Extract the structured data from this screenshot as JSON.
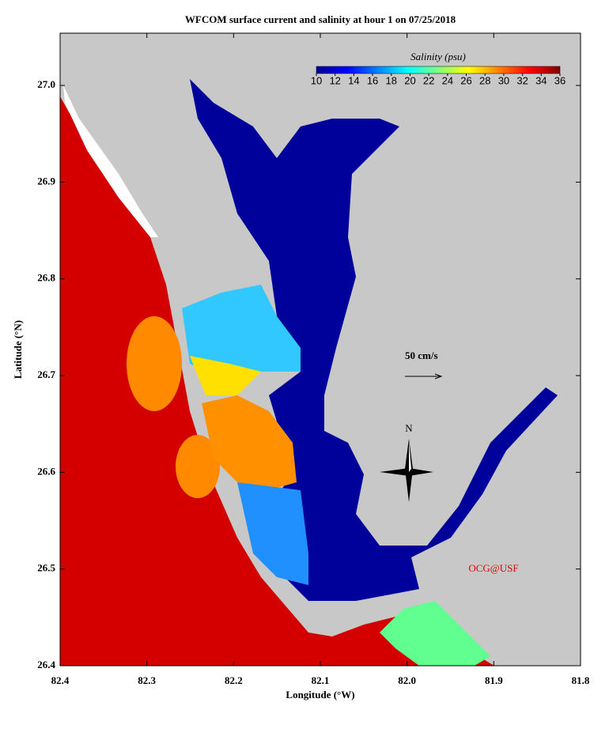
{
  "chart_data": {
    "type": "map",
    "title": "WFCOM surface current and salinity at hour 1 on 07/25/2018",
    "xlabel": "Longitude (°W)",
    "ylabel": "Latitude (°N)",
    "xlim": [
      82.4,
      81.8
    ],
    "xticks": [
      82.4,
      82.3,
      82.2,
      82.1,
      {
        "value": 82,
        "label": "82.0"
      },
      81.9,
      81.8
    ],
    "ylim": [
      26.4,
      27.054
    ],
    "yticks": [
      26.4,
      26.5,
      26.6,
      26.7,
      26.8,
      26.9,
      {
        "value": 27,
        "label": "27.0"
      }
    ],
    "colorbar": {
      "label": "Salinity (psu)",
      "clim": [
        10,
        36
      ],
      "ticks": [
        10,
        12,
        14,
        16,
        18,
        20,
        22,
        24,
        26,
        28,
        30,
        32,
        34,
        36
      ],
      "colors": [
        "#00008f",
        "#0000ff",
        "#0080ff",
        "#00ffff",
        "#80ff80",
        "#ffff00",
        "#ff8000",
        "#ff0000",
        "#800000"
      ]
    },
    "scale_label": "50 cm/s",
    "north_label": "N",
    "credit": "OCG@USF"
  }
}
